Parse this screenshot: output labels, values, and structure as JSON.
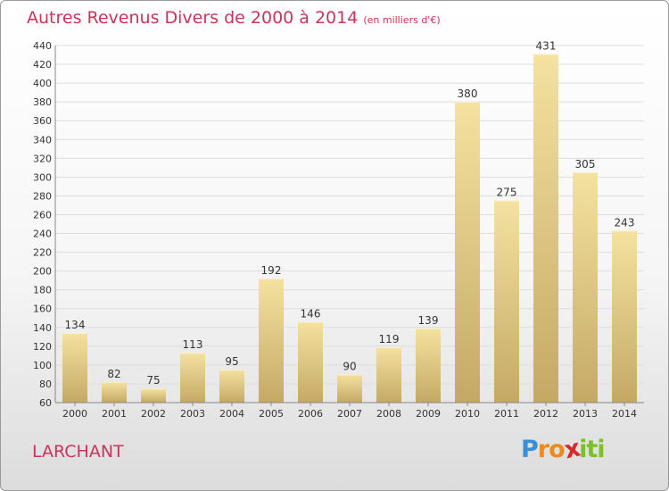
{
  "title": "Autres Revenus Divers de 2000 à 2014",
  "unit": "(en milliers d'€)",
  "town": "LARCHANT",
  "logo": {
    "letters": [
      "P",
      "r",
      "o",
      "x",
      "i",
      "t",
      "i"
    ],
    "colors": [
      "#3a8fd6",
      "#f08a1c",
      "#f08a1c",
      "#d62a2a",
      "#7cbf2a",
      "#7cbf2a",
      "#7cbf2a"
    ]
  },
  "colors": {
    "title": "#c8345a",
    "bar_light": "#f5e2a0",
    "bar_dark": "#c4a965",
    "grid": "#dddddd",
    "text": "#333333"
  },
  "chart_data": {
    "type": "bar",
    "categories": [
      "2000",
      "2001",
      "2002",
      "2003",
      "2004",
      "2005",
      "2006",
      "2007",
      "2008",
      "2009",
      "2010",
      "2011",
      "2012",
      "2013",
      "2014"
    ],
    "values": [
      134,
      82,
      75,
      113,
      95,
      192,
      146,
      90,
      119,
      139,
      380,
      275,
      431,
      305,
      243
    ],
    "ylim": [
      60,
      440
    ],
    "yticks": [
      60,
      80,
      100,
      120,
      140,
      160,
      180,
      200,
      220,
      240,
      260,
      280,
      300,
      320,
      340,
      360,
      380,
      400,
      420,
      440
    ],
    "grid": true,
    "data_labels": true
  }
}
